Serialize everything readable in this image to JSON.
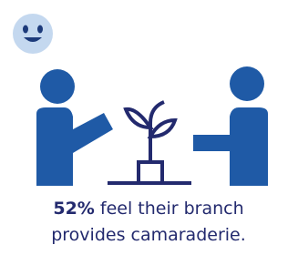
{
  "stat": "52%",
  "caption_lines": [
    "feel their branch",
    "provides camaraderie."
  ]
}
